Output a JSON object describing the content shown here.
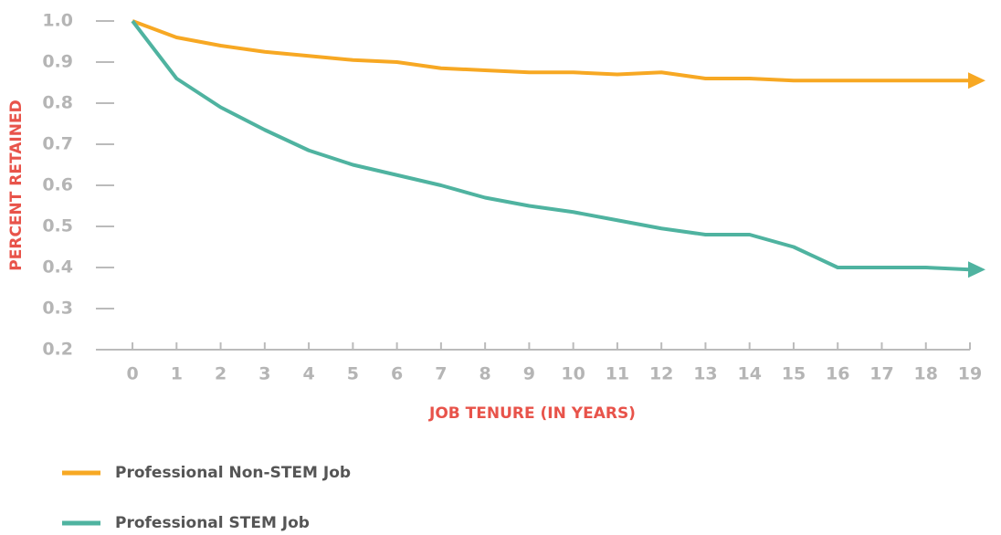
{
  "chart_data": {
    "type": "line",
    "x_label": "JOB TENURE (IN YEARS)",
    "y_label": "PERCENT RETAINED",
    "x": [
      0,
      1,
      2,
      3,
      4,
      5,
      6,
      7,
      8,
      9,
      10,
      11,
      12,
      13,
      14,
      15,
      16,
      17,
      18,
      19
    ],
    "xlim": [
      -0.83,
      19
    ],
    "xticks": [
      0,
      1,
      2,
      3,
      4,
      5,
      6,
      7,
      8,
      9,
      10,
      11,
      12,
      13,
      14,
      15,
      16,
      17,
      18,
      19
    ],
    "ylim": [
      0.2,
      1.0
    ],
    "yticks": [
      {
        "value": 1,
        "label": "1.0"
      },
      0.9,
      0.8,
      0.7,
      0.6,
      0.5,
      0.4,
      0.3,
      0.2
    ],
    "series": [
      {
        "name": "Professional Non-STEM Job",
        "color": "#f7a823",
        "values": [
          1.0,
          0.96,
          0.94,
          0.925,
          0.915,
          0.905,
          0.9,
          0.885,
          0.88,
          0.875,
          0.875,
          0.87,
          0.875,
          0.86,
          0.86,
          0.855,
          0.855,
          0.855,
          0.855,
          0.855
        ]
      },
      {
        "name": "Professional STEM Job",
        "color": "#4fb3a0",
        "values": [
          1.0,
          0.86,
          0.79,
          0.735,
          0.685,
          0.65,
          0.625,
          0.6,
          0.57,
          0.55,
          0.535,
          0.515,
          0.495,
          0.48,
          0.48,
          0.45,
          0.4,
          0.4,
          0.4,
          0.395
        ]
      }
    ]
  }
}
